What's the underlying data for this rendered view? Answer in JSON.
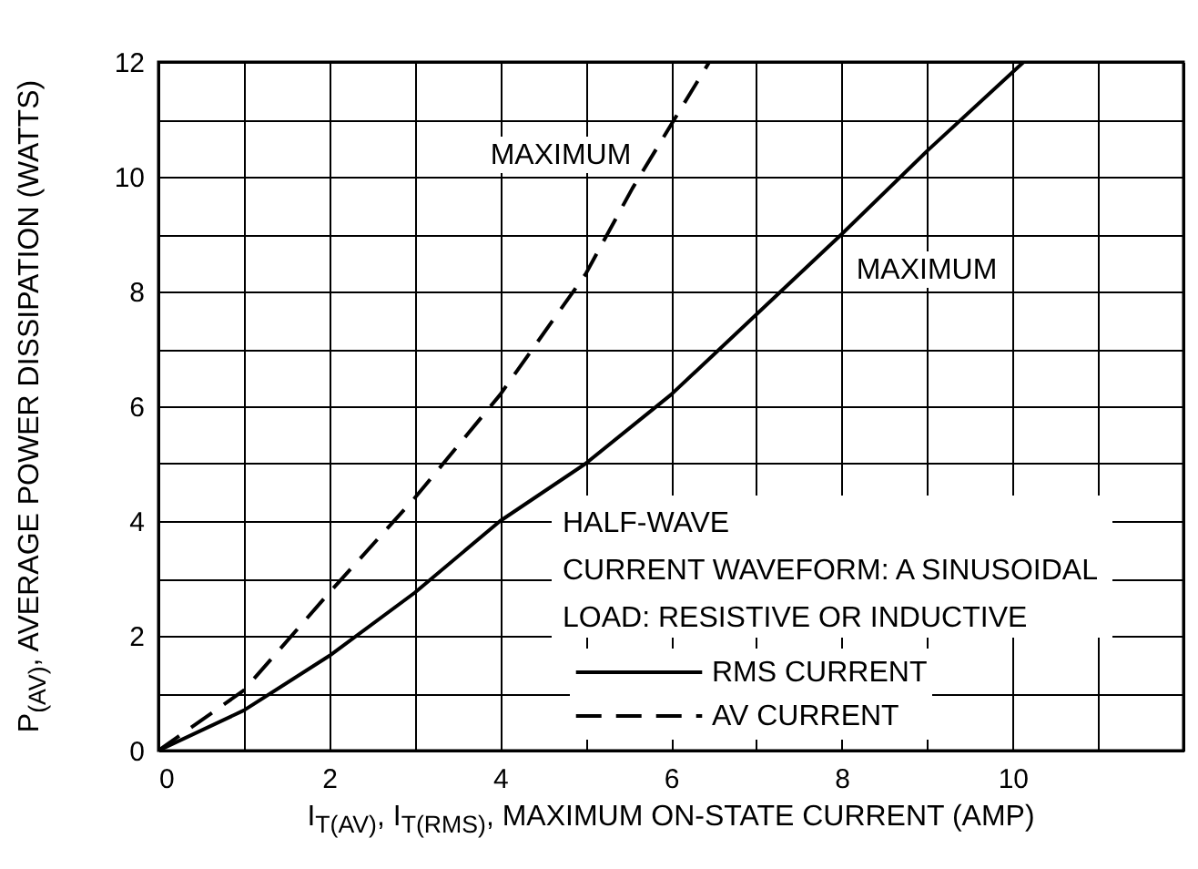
{
  "chart_data": {
    "type": "line",
    "xlabel": "I$_{T(AV)}$, I$_{T(RMS)}$, MAXIMUM ON-STATE CURRENT (AMP)",
    "ylabel": "P$_{(AV)}$, AVERAGE POWER DISSIPATION (WATTS)",
    "xlim": [
      0,
      12
    ],
    "xticks": [
      0,
      {
        "value": 1,
        "label": null
      },
      2,
      {
        "value": 3,
        "label": null
      },
      4,
      {
        "value": 5,
        "label": null
      },
      6,
      {
        "value": 7,
        "label": null
      },
      8,
      {
        "value": 9,
        "label": null
      },
      10,
      {
        "value": 11,
        "label": null
      },
      {
        "value": 12,
        "label": null
      }
    ],
    "ylim": [
      0,
      12
    ],
    "yticks": [
      0,
      {
        "value": 1,
        "label": null
      },
      2,
      {
        "value": 3,
        "label": null
      },
      4,
      {
        "value": 5,
        "label": null
      },
      6,
      {
        "value": 7,
        "label": null
      },
      8,
      {
        "value": 9,
        "label": null
      },
      10,
      {
        "value": 11,
        "label": null
      },
      12
    ],
    "grid": true,
    "legend": "bottom right",
    "series": [
      {
        "name": "RMS CURRENT",
        "color": "#000000",
        "line_style": "solid",
        "x": [
          0,
          1,
          2,
          3,
          4,
          5,
          6,
          7,
          8,
          9,
          10.13
        ],
        "values": [
          0,
          0.7,
          1.65,
          2.75,
          4.0,
          5.0,
          6.2,
          7.6,
          9.0,
          10.45,
          12
        ]
      },
      {
        "name": "AV CURRENT",
        "color": "#000000",
        "line_style": "dashed",
        "x": [
          0,
          1,
          2,
          3,
          4,
          5,
          5.55,
          6,
          6.45
        ],
        "values": [
          0,
          1.05,
          2.75,
          4.4,
          6.2,
          8.3,
          9.8,
          10.9,
          12
        ]
      }
    ],
    "annotations": [
      "MAXIMUM",
      "MAXIMUM",
      "HALF-WAVE",
      "CURRENT WAVEFORM: A SINUSOIDAL",
      "LOAD: RESISTIVE OR INDUCTIVE"
    ]
  }
}
